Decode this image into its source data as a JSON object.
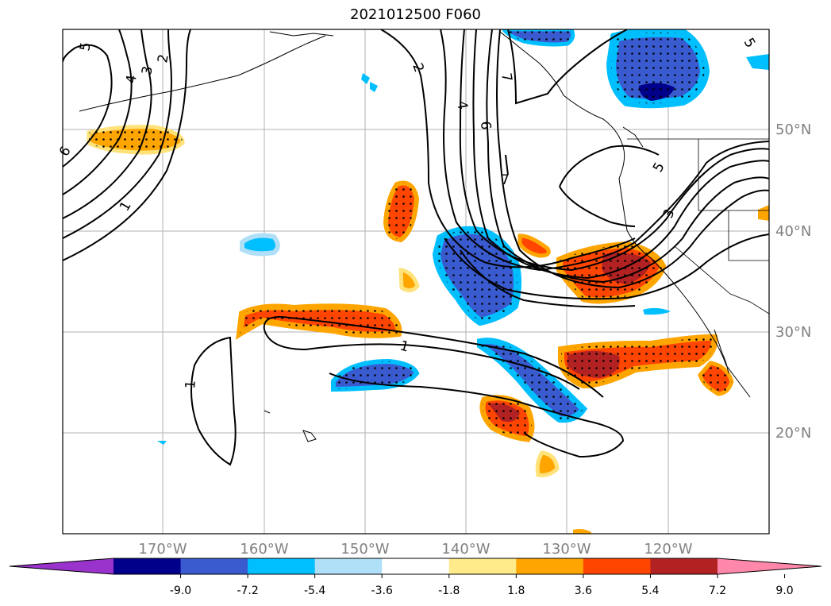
{
  "title": "2021012500 F060",
  "map": {
    "lat_ticks": [
      "50°N",
      "40°N",
      "30°N",
      "20°N"
    ],
    "lon_ticks": [
      "170°W",
      "160°W",
      "150°W",
      "140°W",
      "130°W",
      "120°W"
    ],
    "gridlines": true
  },
  "contours": {
    "color": "#000000",
    "labels": [
      "5",
      "4",
      "3",
      "2",
      "6",
      "1",
      "2",
      "4",
      "6",
      "7",
      "7",
      "5",
      "3",
      "1",
      "1",
      "5"
    ]
  },
  "colorbar": {
    "ticks": [
      "-9.0",
      "-7.2",
      "-5.4",
      "-3.6",
      "-1.8",
      "1.8",
      "3.6",
      "5.4",
      "7.2",
      "9.0"
    ],
    "colors": [
      "#9933cc",
      "#00008b",
      "#3a5bd0",
      "#00bfff",
      "#b0e0f8",
      "#ffffff",
      "#ffeb8a",
      "#ffa500",
      "#ff4500",
      "#b22222",
      "#ff88aa"
    ]
  }
}
